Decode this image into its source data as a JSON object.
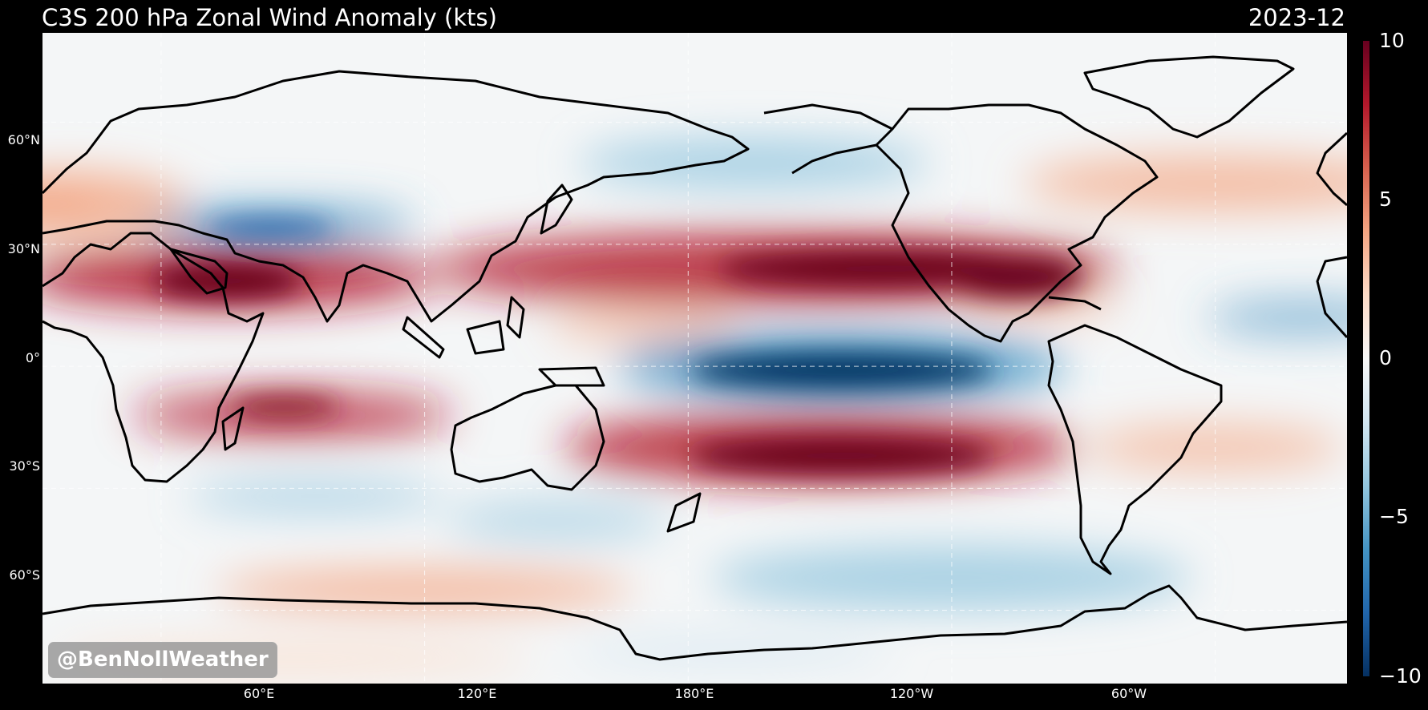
{
  "title": {
    "main": "C3S 200 hPa Zonal Wind Anomaly (kts)",
    "date": "2023-12"
  },
  "watermark": "@BenNollWeather",
  "map": {
    "projection": "equirectangular",
    "center_longitude": 180,
    "lat_labels": [
      "60°N",
      "30°N",
      "0°",
      "30°S",
      "60°S"
    ],
    "lon_labels": [
      "60°E",
      "120°E",
      "180°E",
      "120°W",
      "60°W"
    ],
    "gridlines": true,
    "ocean_land_fill": "anomaly-shaded",
    "anomaly_features": [
      {
        "type": "positive",
        "label": "subtropical jet, eastern Pacific / Mexico",
        "lon": -122,
        "lat": 23
      },
      {
        "type": "positive",
        "label": "South Asia / Arabian Sea",
        "lon": 75,
        "lat": 21
      },
      {
        "type": "negative",
        "label": "equatorial central-eastern Pacific",
        "lon": -145,
        "lat": 0
      },
      {
        "type": "positive",
        "label": "South Pacific",
        "lon": -145,
        "lat": -22
      },
      {
        "type": "negative",
        "label": "western North Pacific / Tibet",
        "lon": 85,
        "lat": 34
      },
      {
        "type": "positive",
        "label": "southern Indian Ocean",
        "lon": 85,
        "lat": -11
      }
    ]
  },
  "colorbar": {
    "cmap": "RdBu_r",
    "min": -10,
    "max": 10,
    "ticks": [
      "10",
      "5",
      "0",
      "−5",
      "−10"
    ],
    "colors": [
      "#053061",
      "#2166ac",
      "#4393c3",
      "#92c5de",
      "#d1e5f0",
      "#f7f7f7",
      "#fddbc7",
      "#f4a582",
      "#d6604d",
      "#b2182b",
      "#67001f"
    ]
  }
}
